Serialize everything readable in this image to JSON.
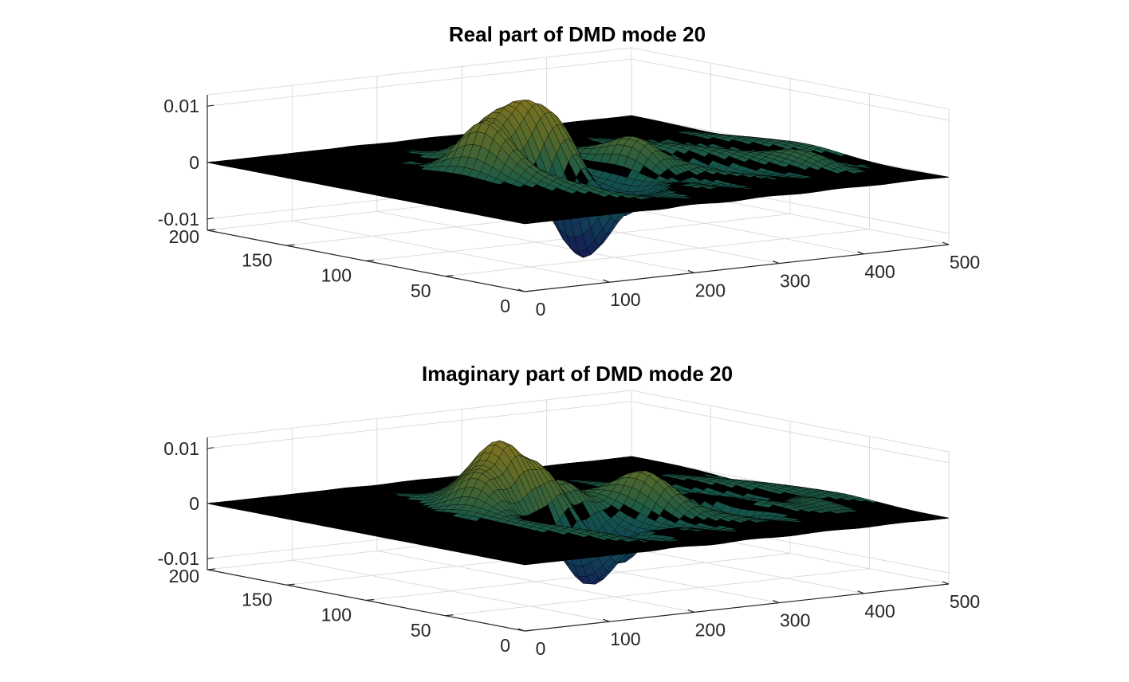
{
  "chart_data": [
    {
      "type": "surface",
      "title": "Real part of DMD mode 20",
      "xlabel": "",
      "ylabel": "",
      "zlabel": "",
      "x_ticks": [
        "0",
        "100",
        "200",
        "300",
        "400",
        "500"
      ],
      "y_ticks": [
        "0",
        "50",
        "100",
        "150",
        "200"
      ],
      "z_ticks": [
        "-0.01",
        "0",
        "0.01"
      ],
      "xlim": [
        0,
        500
      ],
      "ylim": [
        0,
        200
      ],
      "zlim": [
        -0.012,
        0.012
      ],
      "grid": true,
      "colormap": "parula-dark",
      "peaks": [
        {
          "x": 160,
          "y": 110,
          "z": 0.0095
        },
        {
          "x": 190,
          "y": 120,
          "z": 0.0085
        },
        {
          "x": 215,
          "y": 115,
          "z": 0.008
        },
        {
          "x": 240,
          "y": 110,
          "z": 0.007
        },
        {
          "x": 200,
          "y": 70,
          "z": -0.011
        },
        {
          "x": 250,
          "y": 75,
          "z": -0.009
        },
        {
          "x": 300,
          "y": 90,
          "z": 0.005
        },
        {
          "x": 360,
          "y": 80,
          "z": -0.004
        },
        {
          "x": 440,
          "y": 60,
          "z": 0.002
        }
      ]
    },
    {
      "type": "surface",
      "title": "Imaginary part of DMD mode 20",
      "xlabel": "",
      "ylabel": "",
      "zlabel": "",
      "x_ticks": [
        "0",
        "100",
        "200",
        "300",
        "400",
        "500"
      ],
      "y_ticks": [
        "0",
        "50",
        "100",
        "150",
        "200"
      ],
      "z_ticks": [
        "-0.01",
        "0",
        "0.01"
      ],
      "xlim": [
        0,
        500
      ],
      "ylim": [
        0,
        200
      ],
      "zlim": [
        -0.012,
        0.012
      ],
      "grid": true,
      "colormap": "parula-dark",
      "peaks": [
        {
          "x": 165,
          "y": 115,
          "z": 0.009
        },
        {
          "x": 195,
          "y": 120,
          "z": 0.0095
        },
        {
          "x": 225,
          "y": 115,
          "z": 0.0075
        },
        {
          "x": 255,
          "y": 110,
          "z": 0.0065
        },
        {
          "x": 205,
          "y": 70,
          "z": -0.0105
        },
        {
          "x": 245,
          "y": 75,
          "z": -0.009
        },
        {
          "x": 310,
          "y": 90,
          "z": 0.005
        },
        {
          "x": 380,
          "y": 80,
          "z": -0.004
        },
        {
          "x": 450,
          "y": 60,
          "z": 0.002
        }
      ]
    }
  ]
}
